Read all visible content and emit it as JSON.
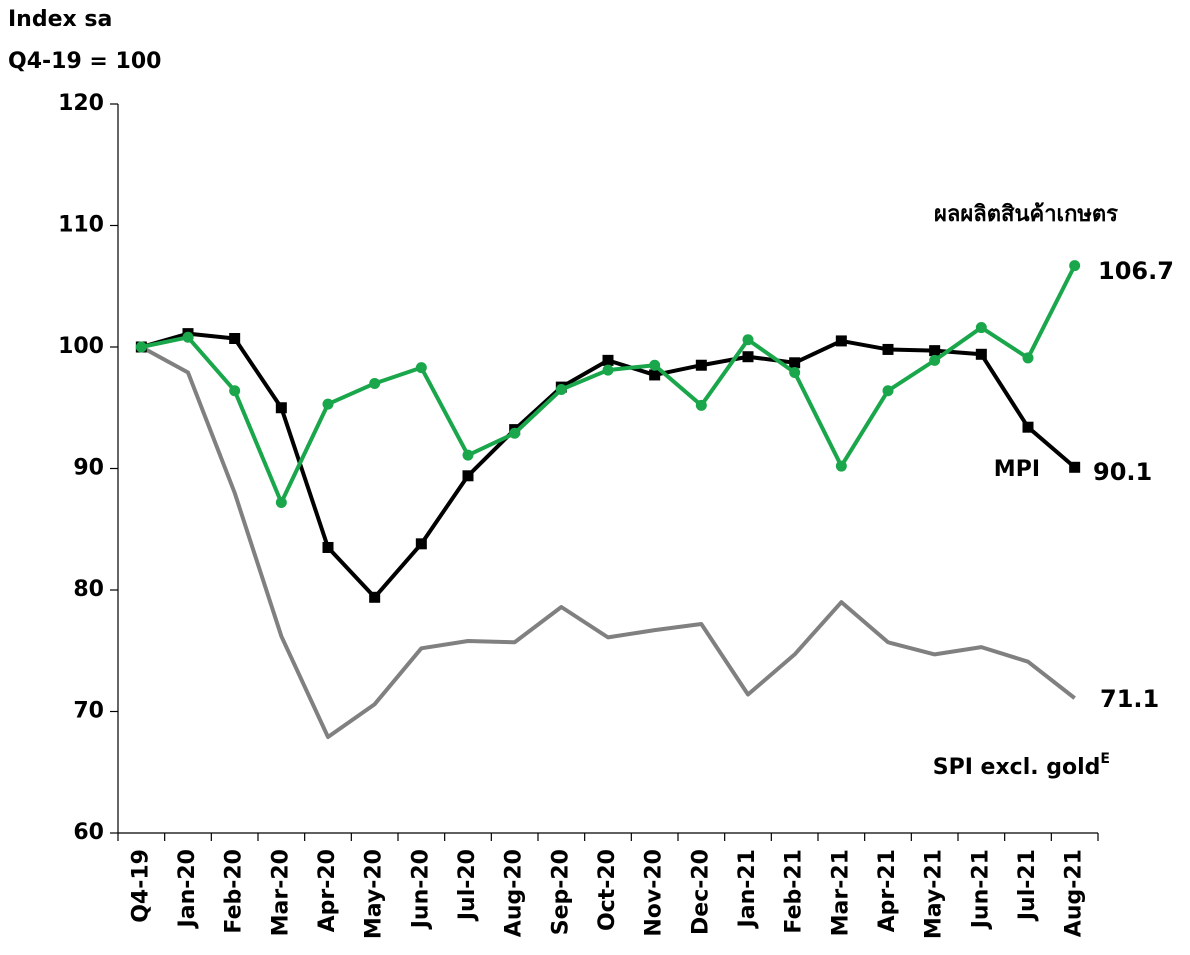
{
  "chart_data": {
    "type": "line",
    "ylabel_lines": [
      "Index sa",
      "Q4-19 = 100"
    ],
    "categories": [
      "Q4-19",
      "Jan-20",
      "Feb-20",
      "Mar-20",
      "Apr-20",
      "May-20",
      "Jun-20",
      "Jul-20",
      "Aug-20",
      "Sep-20",
      "Oct-20",
      "Nov-20",
      "Dec-20",
      "Jan-21",
      "Feb-21",
      "Mar-21",
      "Apr-21",
      "May-21",
      "Jun-21",
      "Jul-21",
      "Aug-21"
    ],
    "ylim": [
      60,
      120
    ],
    "yticks": [
      60,
      70,
      80,
      90,
      100,
      110,
      120
    ],
    "grid": false,
    "series": [
      {
        "name": "SPI excl. gold",
        "name_superscript": "E",
        "color": "#808080",
        "marker": "none",
        "values": [
          100,
          97.9,
          88,
          76.2,
          67.9,
          70.6,
          75.2,
          75.8,
          75.7,
          78.6,
          76.1,
          76.7,
          77.2,
          71.4,
          74.7,
          79,
          75.7,
          74.7,
          75.3,
          74.1,
          71.1
        ]
      },
      {
        "name": "MPI",
        "color": "#000000",
        "marker": "square",
        "values": [
          100,
          101.1,
          100.7,
          95,
          83.5,
          79.4,
          83.8,
          89.4,
          93.2,
          96.7,
          98.9,
          97.7,
          98.5,
          99.2,
          98.7,
          100.5,
          99.8,
          99.7,
          99.4,
          93.4,
          90.1
        ]
      },
      {
        "name": "ผลผลิตสินค้าเกษตร",
        "color": "#1aa64a",
        "marker": "circle",
        "values": [
          100,
          100.8,
          96.4,
          87.2,
          95.3,
          97,
          98.3,
          91.1,
          92.9,
          96.5,
          98.1,
          98.5,
          95.2,
          100.6,
          97.9,
          90.2,
          96.4,
          98.9,
          101.6,
          99.1,
          106.7
        ]
      }
    ]
  }
}
